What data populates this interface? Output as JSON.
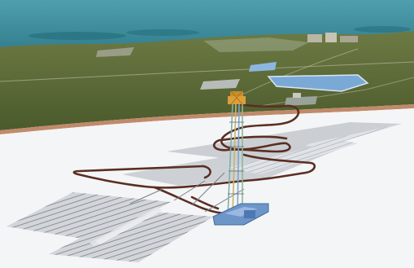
{
  "scene": {
    "kind": "3d-mine-model-render",
    "colors": {
      "sea": "#3f8f9e",
      "land": "#5e6b3a",
      "shore": "#c08a6a",
      "plane": "#f4f5f6",
      "panel": "#c9cdd2",
      "panel_lines": "#6b7078",
      "decline": "#5a2e22",
      "headframe": "#d9a03a",
      "shaft": "#7fb0a6",
      "lake": "#7aa9d6",
      "base_blue": "#6d95c8"
    }
  }
}
